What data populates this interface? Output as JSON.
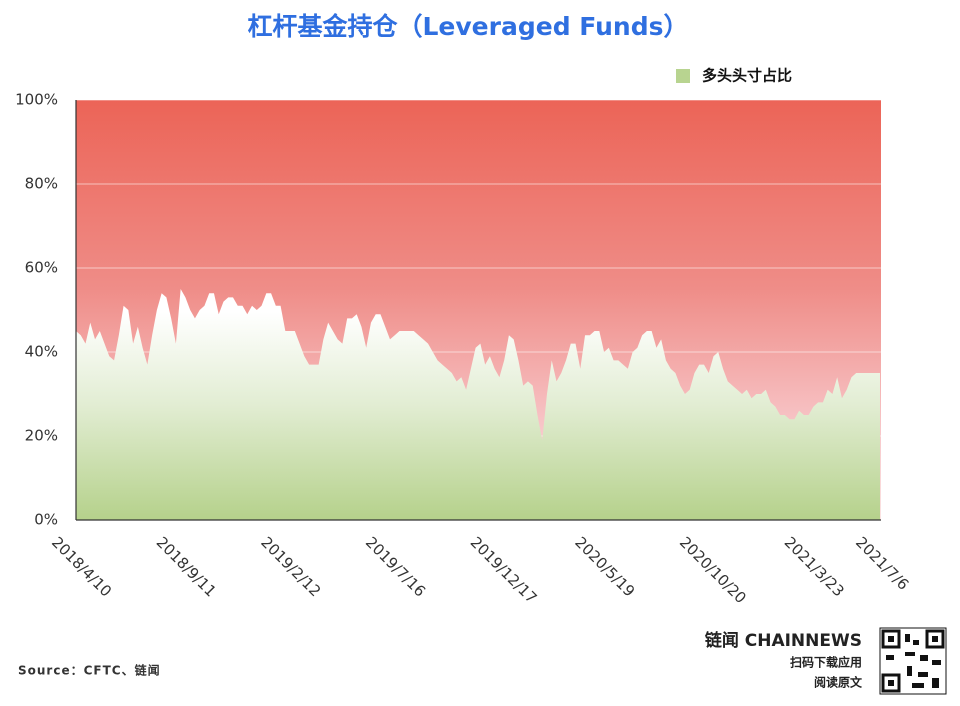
{
  "chart_data": {
    "type": "area",
    "title": "杠杆基金持仓（Leveraged Funds）",
    "source": "Source：CFTC、链闻",
    "brand": "链闻 CHAINNEWS",
    "footer_lines": [
      "扫码下载应用",
      "阅读原文"
    ],
    "legend_position": "top-right",
    "ylim": [
      0,
      100
    ],
    "yticks": [
      {
        "value": 0,
        "label": "0%"
      },
      {
        "value": 20,
        "label": "20%"
      },
      {
        "value": 40,
        "label": "40%"
      },
      {
        "value": 60,
        "label": "60%"
      },
      {
        "value": 80,
        "label": "80%"
      },
      {
        "value": 100,
        "label": "100%"
      }
    ],
    "grid": true,
    "categories": [
      "2018/4/10",
      null,
      null,
      null,
      null,
      null,
      null,
      null,
      null,
      null,
      null,
      null,
      null,
      null,
      null,
      null,
      null,
      null,
      null,
      null,
      null,
      null,
      "2018/9/11",
      null,
      null,
      null,
      null,
      null,
      null,
      null,
      null,
      null,
      null,
      null,
      null,
      null,
      null,
      null,
      null,
      null,
      null,
      null,
      null,
      null,
      "2019/2/12",
      null,
      null,
      null,
      null,
      null,
      null,
      null,
      null,
      null,
      null,
      null,
      null,
      null,
      null,
      null,
      null,
      null,
      null,
      null,
      null,
      null,
      "2019/7/16",
      null,
      null,
      null,
      null,
      null,
      null,
      null,
      null,
      null,
      null,
      null,
      null,
      null,
      null,
      null,
      null,
      null,
      null,
      null,
      null,
      null,
      "2019/12/17",
      null,
      null,
      null,
      null,
      null,
      null,
      null,
      null,
      null,
      null,
      null,
      null,
      null,
      null,
      null,
      null,
      null,
      null,
      null,
      null,
      null,
      "2020/5/19",
      null,
      null,
      null,
      null,
      null,
      null,
      null,
      null,
      null,
      null,
      null,
      null,
      null,
      null,
      null,
      null,
      null,
      null,
      null,
      null,
      null,
      "2020/10/20",
      null,
      null,
      null,
      null,
      null,
      null,
      null,
      null,
      null,
      null,
      null,
      null,
      null,
      null,
      null,
      null,
      null,
      null,
      null,
      null,
      null,
      "2021/3/23",
      null,
      null,
      null,
      null,
      null,
      null,
      null,
      null,
      null,
      null,
      null,
      null,
      null,
      null,
      "2021/7/6"
    ],
    "series": [
      {
        "name": "多头头寸占比",
        "color": "#b8d490",
        "values": [
          45,
          44,
          42,
          47,
          43,
          45,
          42,
          39,
          38,
          44,
          51,
          50,
          42,
          46,
          41,
          37,
          44,
          50,
          54,
          53,
          48,
          42,
          55,
          53,
          50,
          48,
          50,
          51,
          54,
          54,
          49,
          52,
          53,
          53,
          51,
          51,
          49,
          51,
          50,
          51,
          54,
          54,
          51,
          51,
          45,
          45,
          45,
          42,
          39,
          37,
          37,
          37,
          43,
          47,
          45,
          43,
          42,
          48,
          48,
          49,
          46,
          41,
          47,
          49,
          49,
          46,
          43,
          44,
          45,
          45,
          45,
          45,
          44,
          43,
          42,
          40,
          38,
          37,
          36,
          35,
          33,
          34,
          31,
          36,
          41,
          42,
          37,
          39,
          36,
          34,
          38,
          44,
          43,
          38,
          32,
          33,
          32,
          25,
          19,
          30,
          38,
          33,
          35,
          38,
          42,
          42,
          36,
          44,
          44,
          45,
          45,
          40,
          41,
          38,
          38,
          37,
          36,
          40,
          41,
          44,
          45,
          45,
          41,
          43,
          38,
          36,
          35,
          32,
          30,
          31,
          35,
          37,
          37,
          35,
          39,
          40,
          36,
          33,
          32,
          31,
          30,
          31,
          29,
          30,
          30,
          31,
          28,
          27,
          25,
          25,
          24,
          24,
          26,
          25,
          25,
          27,
          28,
          28,
          31,
          30,
          34,
          29,
          31,
          34,
          35,
          35,
          35,
          35,
          35,
          35
        ]
      }
    ]
  }
}
